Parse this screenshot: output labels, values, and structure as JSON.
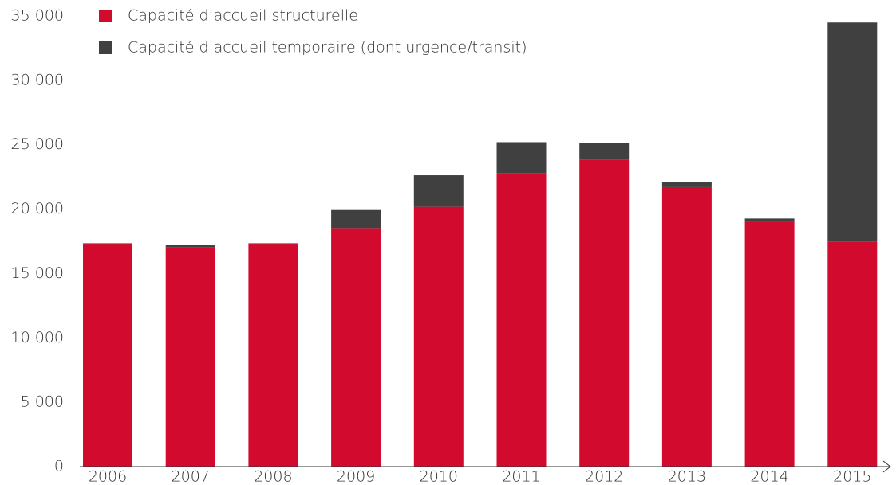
{
  "chart_data": {
    "type": "stacked-bar",
    "categories": [
      "2006",
      "2007",
      "2008",
      "2009",
      "2010",
      "2011",
      "2012",
      "2013",
      "2014",
      "2015"
    ],
    "series": [
      {
        "name": "Capacité d’accueil structurelle",
        "color": "#d20a2e",
        "values": [
          17250,
          17060,
          17250,
          18530,
          20180,
          22810,
          23850,
          21710,
          19020,
          17490
        ]
      },
      {
        "name": "Capacité d’accueil temporaire (dont urgence/transit)",
        "color": "#404040",
        "values": [
          100,
          130,
          100,
          1400,
          2450,
          2390,
          1290,
          370,
          250,
          17000
        ]
      }
    ],
    "ylim": [
      0,
      35000
    ],
    "yticks": [
      0,
      {
        "value": 5000,
        "label": "5 000"
      },
      {
        "value": 10000,
        "label": "10 000"
      },
      {
        "value": 15000,
        "label": "15 000"
      },
      {
        "value": 20000,
        "label": "20 000"
      },
      {
        "value": 25000,
        "label": "25 000"
      },
      {
        "value": 30000,
        "label": "30 000"
      },
      {
        "value": 35000,
        "label": "35 000"
      }
    ],
    "legend": "top-left"
  }
}
